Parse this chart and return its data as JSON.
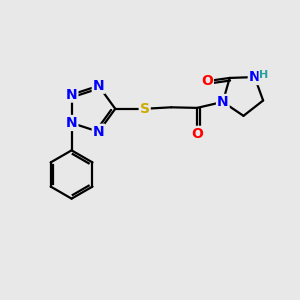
{
  "bg_color": "#e8e8e8",
  "atom_colors": {
    "N": "#0000ff",
    "S": "#ccaa00",
    "O": "#ff0000",
    "C": "#000000",
    "H": "#2aa0a0"
  },
  "bond_color": "#000000",
  "bond_width": 1.6,
  "font_size_atom": 10,
  "font_size_H": 8,
  "xlim": [
    0,
    10
  ],
  "ylim": [
    0,
    10
  ]
}
